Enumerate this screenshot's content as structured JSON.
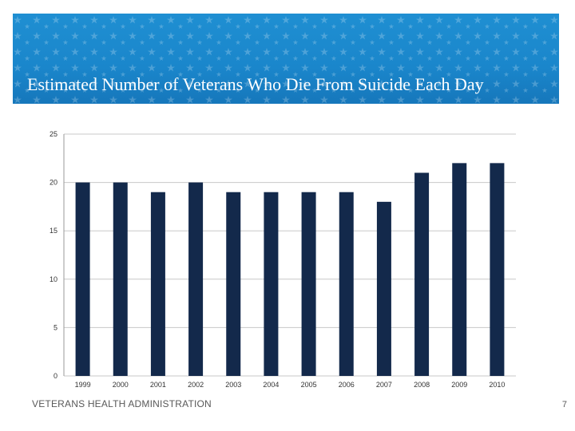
{
  "slide": {
    "title": "Estimated Number of Veterans Who Die From Suicide Each Day",
    "footer": "VETERANS HEALTH ADMINISTRATION",
    "page_number": "7"
  },
  "colors": {
    "banner": "#1a86cb",
    "bar": "#13294b",
    "grid": "#c8c8c8"
  },
  "chart_data": {
    "type": "bar",
    "title": "",
    "xlabel": "",
    "ylabel": "",
    "categories": [
      "1999",
      "2000",
      "2001",
      "2002",
      "2003",
      "2004",
      "2005",
      "2006",
      "2007",
      "2008",
      "2009",
      "2010"
    ],
    "values": [
      20,
      20,
      19,
      20,
      19,
      19,
      19,
      19,
      18,
      21,
      22,
      22
    ],
    "ylim": [
      0,
      25
    ],
    "yticks": [
      "0",
      "5",
      "10",
      "15",
      "20",
      "25"
    ],
    "grid": true,
    "legend": "none"
  }
}
